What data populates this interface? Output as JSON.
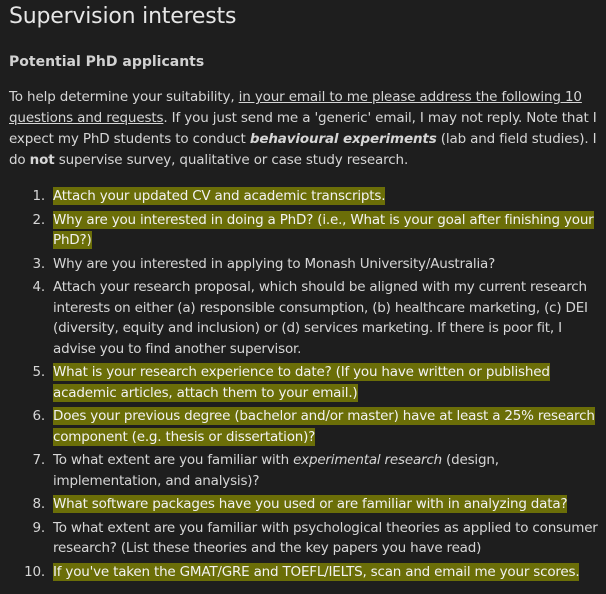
{
  "page": {
    "title": "Supervision interests",
    "subtitle": "Potential PhD applicants"
  },
  "intro": {
    "part1": "To help determine your suitability, ",
    "underlined": "in your email to me please address the following 10 questions and requests",
    "part2": ". If you just send me a 'generic' email, I may not reply. Note that I expect my PhD students to conduct ",
    "emphasis": "behavioural experiments",
    "part3": " (lab and field studies). I do ",
    "bold_not": "not",
    "part4": " supervise survey, qualitative or case study research."
  },
  "questions": [
    {
      "num": "1.",
      "text": "Attach your updated CV and academic transcripts.",
      "highlight": true
    },
    {
      "num": "2.",
      "text": "Why are you interested in doing a PhD? (i.e., What is your goal after finishing your PhD?)",
      "highlight": true
    },
    {
      "num": "3.",
      "text": "Why are you interested in applying to Monash University/Australia?",
      "highlight": false
    },
    {
      "num": "4.",
      "text": "Attach your research proposal, which should be aligned with my current research interests on either (a) responsible consumption, (b) healthcare marketing, (c) DEI (diversity, equity and inclusion) or (d) services marketing. If there is poor fit, I advise you to find another supervisor.",
      "highlight": false
    },
    {
      "num": "5.",
      "text": "What is your research experience to date? (If you have written or published academic articles, attach them to your email.)",
      "highlight": true
    },
    {
      "num": "6.",
      "text": "Does your previous degree (bachelor and/or master) have at least a 25% research component (e.g. thesis or dissertation)?",
      "highlight": true
    },
    {
      "num": "7.",
      "text_before": "To what extent are you familiar with ",
      "text_italic": "experimental research",
      "text_after": " (design, implementation, and analysis)?",
      "highlight": false
    },
    {
      "num": "8.",
      "text": "What software packages have you used or are familiar with in analyzing data?",
      "highlight": true
    },
    {
      "num": "9.",
      "text": "To what extent are you familiar with psychological theories as applied to consumer research? (List these theories and the key papers you have read)",
      "highlight": false
    },
    {
      "num": "10.",
      "text": "If you've taken the GMAT/GRE and TOEFL/IELTS, scan and email me your scores.",
      "highlight": true
    }
  ],
  "colors": {
    "background": "#1e1e1e",
    "highlight": "#6b6e08",
    "text": "#d6d6d6"
  }
}
